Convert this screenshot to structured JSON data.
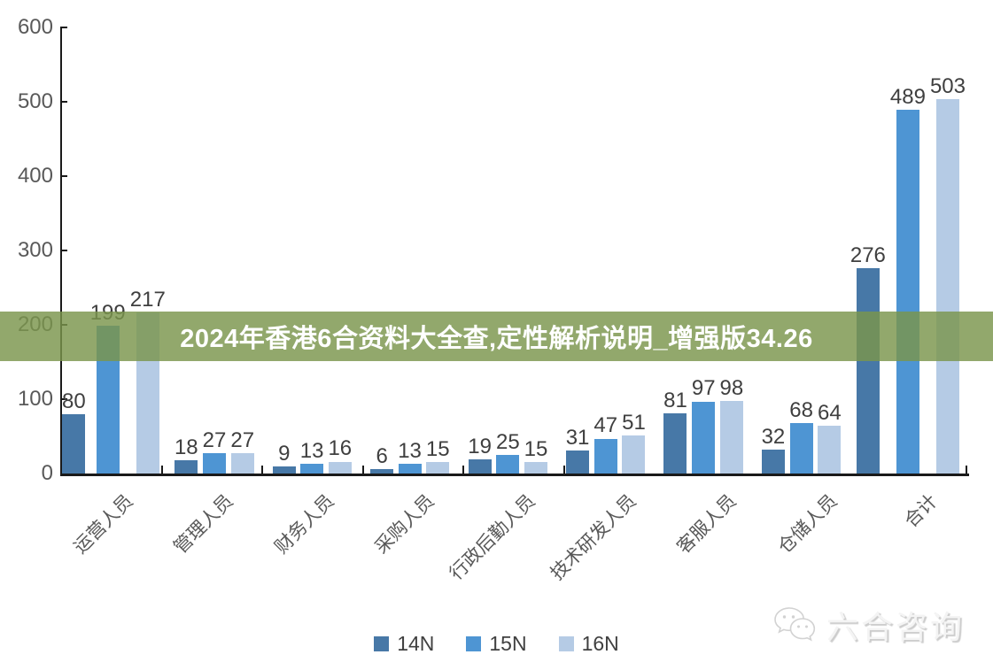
{
  "banner": {
    "text": "2024年香港6合资料大全查,定性解析说明_增强版34.26",
    "background_color": "#7a954c"
  },
  "chart_data": {
    "type": "bar",
    "title": "",
    "xlabel": "",
    "ylabel": "",
    "categories": [
      "运营人员",
      "管理人员",
      "财务人员",
      "采购人员",
      "行政后勤人员",
      "技术研发人员",
      "客服人员",
      "仓储人员",
      "合计"
    ],
    "series": [
      {
        "name": "14N",
        "color": "#4778a7",
        "values": [
          80,
          18,
          9,
          6,
          19,
          31,
          81,
          32,
          276
        ]
      },
      {
        "name": "15N",
        "color": "#4e95d3",
        "values": [
          199,
          27,
          13,
          13,
          25,
          47,
          97,
          68,
          489
        ]
      },
      {
        "name": "16N",
        "color": "#b5cbe5",
        "values": [
          217,
          27,
          16,
          15,
          15,
          51,
          98,
          64,
          503
        ]
      }
    ],
    "ylim": [
      0,
      600
    ],
    "yticks": [
      0,
      100,
      200,
      300,
      400,
      500,
      600
    ],
    "grid": false,
    "legend_position": "bottom",
    "value_labels_shown": true,
    "category_label_rotation_deg": 45
  },
  "watermark": {
    "text": "六合咨询",
    "icon": "wechat-bubbles-icon"
  },
  "colors": {
    "axis": "#1a1a1a",
    "tick_label": "#595959",
    "value_label": "#3f3f3f",
    "legend_label": "#404040",
    "banner_text": "#ffffff"
  }
}
